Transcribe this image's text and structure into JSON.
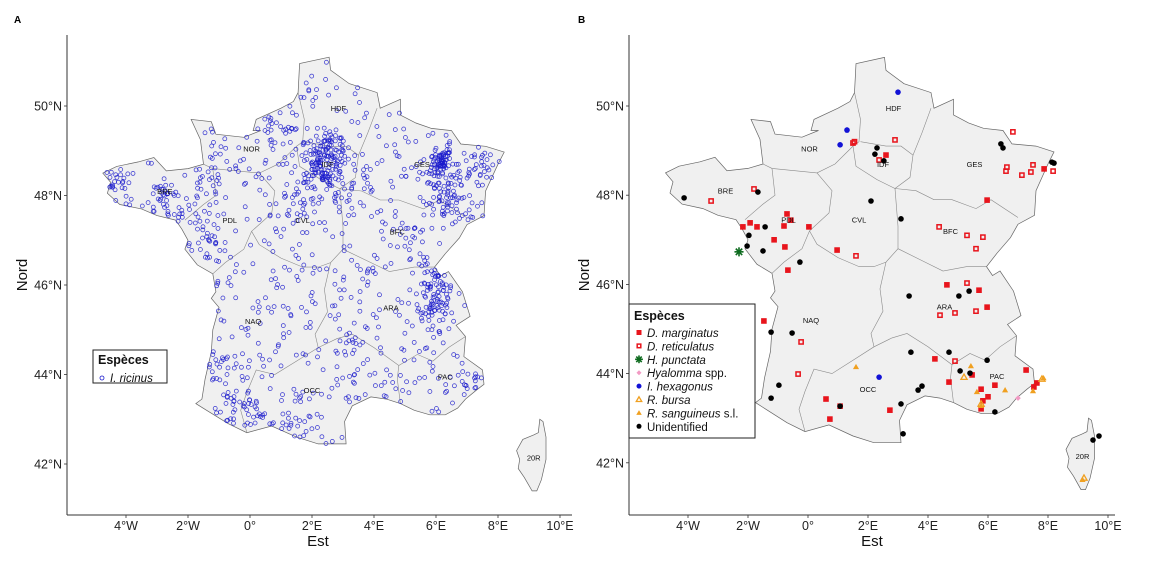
{
  "figure": {
    "panels": [
      {
        "label": "A",
        "xlabel": "Est",
        "ylabel": "Nord"
      },
      {
        "label": "B",
        "xlabel": "Est",
        "ylabel": "Nord"
      }
    ],
    "x_ticks": [
      "4°W",
      "2°W",
      "0°",
      "2°E",
      "4°E",
      "6°E",
      "8°E",
      "10°E"
    ],
    "y_ticks": [
      "50°N",
      "48°N",
      "46°N",
      "44°N",
      "42°N"
    ],
    "regions": [
      {
        "code": "HDF",
        "lon": 2.85,
        "lat": 49.95
      },
      {
        "code": "NOR",
        "lon": 0.05,
        "lat": 49.05
      },
      {
        "code": "IDF",
        "lon": 2.5,
        "lat": 48.7
      },
      {
        "code": "GES",
        "lon": 5.55,
        "lat": 48.7
      },
      {
        "code": "BRE",
        "lon": -2.75,
        "lat": 48.1
      },
      {
        "code": "PDL",
        "lon": -0.65,
        "lat": 47.45
      },
      {
        "code": "CVL",
        "lon": 1.7,
        "lat": 47.45
      },
      {
        "code": "BFC",
        "lon": 4.75,
        "lat": 47.2
      },
      {
        "code": "NAQ",
        "lon": 0.1,
        "lat": 45.2
      },
      {
        "code": "ARA",
        "lon": 4.55,
        "lat": 45.5
      },
      {
        "code": "OCC",
        "lon": 2.0,
        "lat": 43.65
      },
      {
        "code": "PAC",
        "lon": 6.3,
        "lat": 43.95
      },
      {
        "code": "20R",
        "lon": 9.15,
        "lat": 42.15
      }
    ]
  },
  "legend_a": {
    "title": "Espèces",
    "items": [
      {
        "label": "I. ricinus",
        "italic": true,
        "color": "#1a1acc",
        "shape": "open-circle"
      }
    ]
  },
  "legend_b": {
    "title": "Espèces",
    "items": [
      {
        "label": "D. marginatus",
        "suffix": "",
        "italic": true,
        "color": "#e8141c",
        "shape": "filled-square"
      },
      {
        "label": "D. reticulatus",
        "suffix": "",
        "italic": true,
        "color": "#e8141c",
        "shape": "open-square"
      },
      {
        "label": "H. punctata",
        "suffix": "",
        "italic": true,
        "color": "#0d6b1e",
        "shape": "asterisk"
      },
      {
        "label": "Hyalomma",
        "suffix": " spp.",
        "italic": true,
        "color": "#f29ac4",
        "shape": "diamond"
      },
      {
        "label": "I. hexagonus",
        "suffix": "",
        "italic": true,
        "color": "#1212d6",
        "shape": "filled-circle"
      },
      {
        "label": "R. bursa",
        "suffix": "",
        "italic": true,
        "color": "#f0a020",
        "shape": "open-triangle"
      },
      {
        "label": "R. sanguineus",
        "suffix": " s.l.",
        "italic": true,
        "color": "#f0a020",
        "shape": "filled-triangle"
      },
      {
        "label": "Unidentified",
        "suffix": "",
        "italic": false,
        "color": "#000000",
        "shape": "filled-circle"
      }
    ]
  },
  "chart_data": [
    {
      "type": "scatter",
      "title": "A",
      "xlabel": "Est",
      "ylabel": "Nord",
      "xlim": [
        -5.8,
        10.3
      ],
      "ylim": [
        41.2,
        51.6
      ],
      "x_tick_values": [
        -4,
        -2,
        0,
        2,
        4,
        6,
        8,
        10
      ],
      "y_tick_values": [
        50,
        48,
        46,
        44,
        42
      ],
      "grid": false,
      "legend_position": "inside-left",
      "series": [
        {
          "name": "I. ricinus",
          "marker": "open-circle",
          "color": "#1a1acc",
          "approx_count": 1100,
          "distribution_note": "Points spread across mainland France; dense clusters listed as [lon, lat, spread_deg, count]",
          "clusters": [
            [
              2.3,
              48.75,
              0.25,
              90
            ],
            [
              2.6,
              48.45,
              0.2,
              25
            ],
            [
              2.6,
              49.25,
              0.2,
              25
            ],
            [
              6.15,
              48.75,
              0.15,
              60
            ],
            [
              6.05,
              48.4,
              0.25,
              35
            ],
            [
              6.35,
              47.85,
              0.25,
              45
            ],
            [
              7.4,
              48.6,
              0.3,
              30
            ],
            [
              6.1,
              45.95,
              0.3,
              55
            ],
            [
              5.9,
              45.4,
              0.25,
              35
            ],
            [
              -4.3,
              48.25,
              0.25,
              20
            ],
            [
              -2.8,
              47.8,
              0.3,
              30
            ],
            [
              -1.4,
              48.2,
              0.3,
              20
            ],
            [
              -0.5,
              43.3,
              0.3,
              25
            ],
            [
              -1.0,
              44.2,
              0.3,
              15
            ],
            [
              0.9,
              49.5,
              0.3,
              25
            ],
            [
              3.3,
              48.6,
              0.3,
              20
            ],
            [
              1.6,
              47.8,
              0.3,
              20
            ],
            [
              -1.2,
              47.1,
              0.3,
              20
            ],
            [
              3.3,
              44.6,
              0.3,
              15
            ],
            [
              7.3,
              43.8,
              0.15,
              10
            ],
            [
              5.2,
              47.1,
              0.3,
              15
            ],
            [
              1.2,
              42.9,
              0.4,
              20
            ]
          ],
          "background_uniform_count": 600
        }
      ]
    },
    {
      "type": "scatter",
      "title": "B",
      "xlabel": "Est",
      "ylabel": "Nord",
      "xlim": [
        -5.8,
        10.3
      ],
      "ylim": [
        41.2,
        51.6
      ],
      "x_tick_values": [
        -4,
        -2,
        0,
        2,
        4,
        6,
        8,
        10
      ],
      "y_tick_values": [
        50,
        48,
        46,
        44,
        42
      ],
      "grid": false,
      "legend_position": "inside-left",
      "series": [
        {
          "name": "D. marginatus",
          "marker": "filled-square",
          "color": "#e8141c",
          "points": [
            [
              2.6,
              48.9
            ],
            [
              5.97,
              47.89
            ],
            [
              7.87,
              48.59
            ],
            [
              -0.7,
              47.58
            ],
            [
              -0.57,
              47.44
            ],
            [
              -2.17,
              47.29
            ],
            [
              -1.93,
              47.38
            ],
            [
              -1.7,
              47.29
            ],
            [
              -0.8,
              47.31
            ],
            [
              0.03,
              47.29
            ],
            [
              -1.13,
              47.0
            ],
            [
              -0.77,
              46.84
            ],
            [
              -0.67,
              46.32
            ],
            [
              0.97,
              46.77
            ],
            [
              4.63,
              45.99
            ],
            [
              5.7,
              45.87
            ],
            [
              5.97,
              45.49
            ],
            [
              4.23,
              44.33
            ],
            [
              5.47,
              43.97
            ],
            [
              4.7,
              43.81
            ],
            [
              7.27,
              44.08
            ],
            [
              6.23,
              43.74
            ],
            [
              5.77,
              43.65
            ],
            [
              6.0,
              43.48
            ],
            [
              5.83,
              43.39
            ],
            [
              5.77,
              43.21
            ],
            [
              7.63,
              43.79
            ],
            [
              7.53,
              43.7
            ],
            [
              -1.47,
              45.18
            ],
            [
              0.6,
              43.43
            ],
            [
              1.07,
              43.27
            ],
            [
              0.73,
              42.98
            ],
            [
              2.73,
              43.18
            ]
          ]
        },
        {
          "name": "D. reticulatus",
          "marker": "open-square",
          "color": "#e8141c",
          "points": [
            [
              1.5,
              49.17
            ],
            [
              1.55,
              49.2
            ],
            [
              2.9,
              49.24
            ],
            [
              2.37,
              48.79
            ],
            [
              6.83,
              49.42
            ],
            [
              6.63,
              48.63
            ],
            [
              6.6,
              48.54
            ],
            [
              7.13,
              48.45
            ],
            [
              7.43,
              48.52
            ],
            [
              7.5,
              48.68
            ],
            [
              8.17,
              48.54
            ],
            [
              -1.8,
              48.14
            ],
            [
              -3.23,
              47.87
            ],
            [
              1.6,
              46.64
            ],
            [
              4.37,
              47.29
            ],
            [
              5.3,
              47.1
            ],
            [
              5.83,
              47.06
            ],
            [
              5.6,
              46.8
            ],
            [
              5.3,
              46.03
            ],
            [
              4.4,
              45.31
            ],
            [
              4.9,
              45.36
            ],
            [
              5.6,
              45.4
            ],
            [
              4.9,
              44.28
            ],
            [
              -0.23,
              44.71
            ],
            [
              -0.33,
              43.99
            ]
          ]
        },
        {
          "name": "H. punctata",
          "marker": "asterisk",
          "color": "#0d6b1e",
          "points": [
            [
              -2.3,
              46.73
            ]
          ]
        },
        {
          "name": "Hyalomma spp.",
          "marker": "diamond",
          "color": "#f29ac4",
          "points": [
            [
              7.0,
              43.45
            ]
          ]
        },
        {
          "name": "I. hexagonus",
          "marker": "filled-circle",
          "color": "#1212d6",
          "points": [
            [
              3.0,
              50.31
            ],
            [
              1.3,
              49.46
            ],
            [
              1.07,
              49.13
            ],
            [
              2.37,
              43.92
            ]
          ]
        },
        {
          "name": "R. bursa",
          "marker": "open-triangle",
          "color": "#f0a020",
          "points": [
            [
              5.2,
              43.92
            ],
            [
              7.8,
              43.88
            ],
            [
              5.77,
              43.32
            ],
            [
              9.2,
              41.66
            ]
          ]
        },
        {
          "name": "R. sanguineus s.l.",
          "marker": "filled-triangle",
          "color": "#f0a020",
          "points": [
            [
              5.43,
              44.17
            ],
            [
              6.57,
              43.63
            ],
            [
              5.63,
              43.59
            ],
            [
              5.77,
              43.28
            ],
            [
              7.5,
              43.61
            ],
            [
              7.85,
              43.9
            ],
            [
              1.6,
              44.15
            ],
            [
              9.15,
              41.62
            ]
          ]
        },
        {
          "name": "Unidentified",
          "marker": "filled-circle",
          "color": "#000000",
          "points": [
            [
              2.3,
              49.06
            ],
            [
              2.23,
              48.92
            ],
            [
              2.53,
              48.77
            ],
            [
              6.43,
              49.15
            ],
            [
              6.5,
              49.06
            ],
            [
              8.13,
              48.74
            ],
            [
              8.2,
              48.72
            ],
            [
              2.1,
              47.87
            ],
            [
              -1.67,
              48.07
            ],
            [
              -4.13,
              47.94
            ],
            [
              -1.43,
              47.29
            ],
            [
              -1.97,
              47.1
            ],
            [
              -2.03,
              46.86
            ],
            [
              -1.5,
              46.75
            ],
            [
              -0.27,
              46.5
            ],
            [
              3.1,
              47.47
            ],
            [
              5.37,
              45.85
            ],
            [
              3.37,
              45.74
            ],
            [
              5.03,
              45.74
            ],
            [
              3.43,
              44.48
            ],
            [
              4.7,
              44.48
            ],
            [
              5.97,
              44.3
            ],
            [
              5.07,
              44.06
            ],
            [
              5.4,
              44.01
            ],
            [
              6.23,
              43.14
            ],
            [
              -0.53,
              44.91
            ],
            [
              -1.23,
              44.93
            ],
            [
              -0.97,
              43.74
            ],
            [
              -1.23,
              43.45
            ],
            [
              1.07,
              43.27
            ],
            [
              3.1,
              43.32
            ],
            [
              3.17,
              42.65
            ],
            [
              3.67,
              43.63
            ],
            [
              3.8,
              43.72
            ],
            [
              9.5,
              42.51
            ],
            [
              9.7,
              42.6
            ]
          ]
        }
      ]
    }
  ]
}
